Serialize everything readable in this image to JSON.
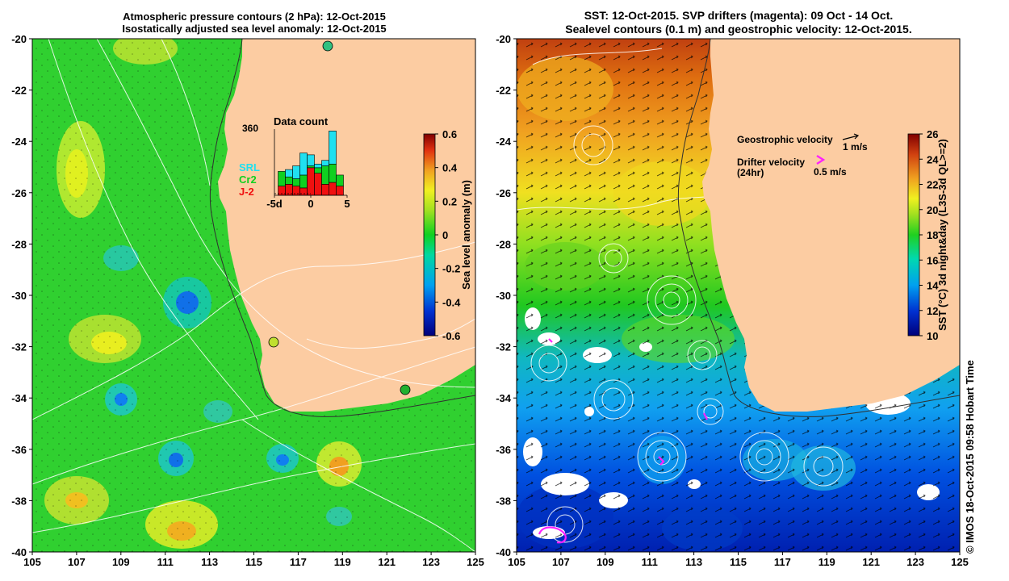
{
  "left_panel": {
    "title_line1": "Atmospheric pressure contours (2 hPa): 12-Oct-2015",
    "title_line2": "Isostatically adjusted sea level anomaly: 12-Oct-2015",
    "y_ticks": [
      "-20",
      "-22",
      "-24",
      "-26",
      "-28",
      "-30",
      "-32",
      "-34",
      "-36",
      "-38",
      "-40"
    ],
    "x_ticks": [
      "105",
      "107",
      "109",
      "111",
      "113",
      "115",
      "117",
      "119",
      "121",
      "123",
      "125"
    ],
    "colorbar": {
      "label": "Sea level anomaly (m)",
      "ticks": [
        "0.6",
        "0.4",
        "0.2",
        "0",
        "-0.2",
        "-0.4",
        "-0.6"
      ]
    },
    "inset": {
      "title": "Data count",
      "ymax_label": "360",
      "x_ticks": [
        "-5d",
        "0",
        "5"
      ],
      "legend": [
        {
          "label": "SRL",
          "color": "#20e0f0"
        },
        {
          "label": "Cr2",
          "color": "#10d020"
        },
        {
          "label": "J-2",
          "color": "#f01010"
        }
      ],
      "bars": [
        {
          "day": -4,
          "j2": 50,
          "cr2": 80,
          "srl": 0
        },
        {
          "day": -3,
          "j2": 60,
          "cr2": 40,
          "srl": 40
        },
        {
          "day": -2,
          "j2": 50,
          "cr2": 40,
          "srl": 70
        },
        {
          "day": -1,
          "j2": 40,
          "cr2": 70,
          "srl": 120
        },
        {
          "day": 0,
          "j2": 150,
          "cr2": 10,
          "srl": 60
        },
        {
          "day": 1,
          "j2": 120,
          "cr2": 30,
          "srl": 20
        },
        {
          "day": 2,
          "j2": 60,
          "cr2": 100,
          "srl": 30
        },
        {
          "day": 3,
          "j2": 70,
          "cr2": 100,
          "srl": 180
        },
        {
          "day": 4,
          "j2": 50,
          "cr2": 60,
          "srl": 0
        }
      ]
    }
  },
  "right_panel": {
    "title_line1": "SST: 12-Oct-2015. SVP drifters (magenta): 09 Oct - 14 Oct.",
    "title_line2": "Sealevel contours (0.1 m) and geostrophic velocity: 12-Oct-2015.",
    "y_ticks": [
      "-20",
      "-22",
      "-24",
      "-26",
      "-28",
      "-30",
      "-32",
      "-34",
      "-36",
      "-38",
      "-40"
    ],
    "x_ticks": [
      "105",
      "107",
      "109",
      "111",
      "113",
      "115",
      "117",
      "119",
      "121",
      "123",
      "125"
    ],
    "legend_geo_label": "Geostrophic velocity",
    "legend_geo_value": "1 m/s",
    "legend_drifter_label1": "Drifter velocity",
    "legend_drifter_label2": "(24hr)",
    "legend_drifter_value": "0.5 m/s",
    "colorbar": {
      "label": "SST (°C) 3d night&day (L3S-3d QL>=2)",
      "ticks": [
        "26",
        "24",
        "22",
        "20",
        "18",
        "16",
        "14",
        "12",
        "10"
      ]
    }
  },
  "credit": "© IMOS 18-Oct-2015 09:58 Hobart Time",
  "colors": {
    "land": "#fccca2",
    "drifter": "#ff20ff"
  }
}
